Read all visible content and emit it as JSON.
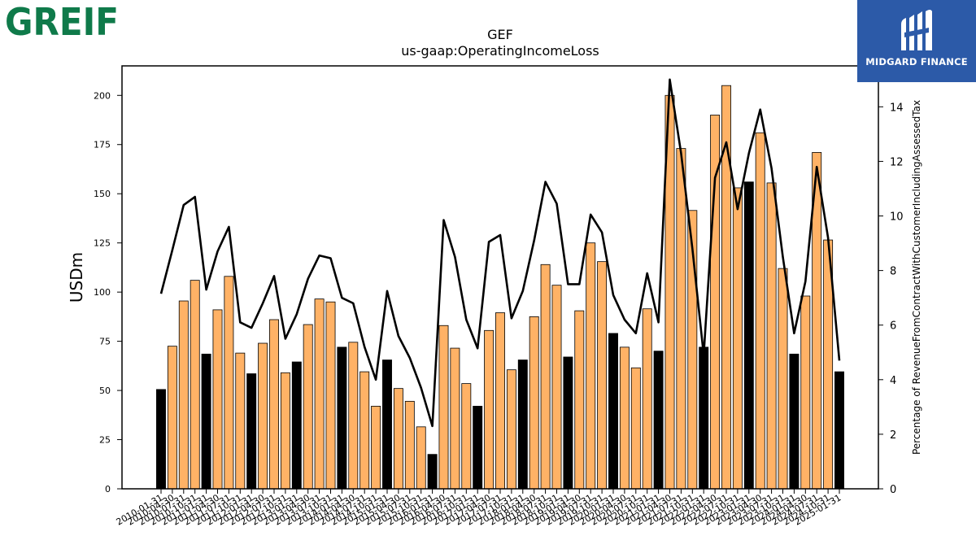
{
  "logos": {
    "left_text": "GREIF",
    "right_text": "MIDGARD FINANCE"
  },
  "chart_data": {
    "type": "bar",
    "title": "GEF",
    "subtitle": "us-gaap:OperatingIncomeLoss",
    "ylabel": "USDm",
    "y2label": "Percentage of RevenueFromContractWithCustomerIncludingAssessedTax",
    "ylim": [
      0,
      215
    ],
    "y2lim": [
      0,
      15.5
    ],
    "yticks": [
      0,
      25,
      50,
      75,
      100,
      125,
      150,
      175,
      200
    ],
    "y2ticks": [
      0,
      2,
      4,
      6,
      8,
      10,
      12,
      14
    ],
    "grid": false,
    "colors": {
      "annual": "#000000",
      "quarter": "#ffb266",
      "line": "#000000"
    },
    "categories": [
      "2010-01-31",
      "2010-04-30",
      "2010-07-31",
      "2010-10-31",
      "2011-01-31",
      "2011-04-30",
      "2011-07-31",
      "2011-10-31",
      "2012-01-31",
      "2012-04-30",
      "2012-07-31",
      "2012-10-31",
      "2013-01-31",
      "2013-04-30",
      "2013-07-31",
      "2013-10-31",
      "2014-01-31",
      "2014-04-30",
      "2014-07-31",
      "2014-10-31",
      "2015-01-31",
      "2015-04-30",
      "2015-07-31",
      "2015-10-31",
      "2016-01-31",
      "2016-04-30",
      "2016-07-31",
      "2016-10-31",
      "2017-01-31",
      "2017-04-30",
      "2017-07-31",
      "2017-10-31",
      "2018-01-31",
      "2018-04-30",
      "2018-07-31",
      "2018-10-31",
      "2019-01-31",
      "2019-04-30",
      "2019-07-31",
      "2019-10-31",
      "2020-01-31",
      "2020-04-30",
      "2020-07-31",
      "2020-10-31",
      "2021-01-31",
      "2021-04-30",
      "2021-07-31",
      "2021-10-31",
      "2022-01-31",
      "2022-04-30",
      "2022-07-31",
      "2022-10-31",
      "2023-01-31",
      "2023-04-30",
      "2023-07-31",
      "2023-10-31",
      "2024-01-31",
      "2024-04-30",
      "2024-07-31",
      "2024-10-31",
      "2025-01-31"
    ],
    "values": [
      50.5,
      72.5,
      95.5,
      106,
      68.5,
      91,
      108,
      69,
      58.5,
      74,
      86,
      59,
      64.5,
      83.5,
      96.5,
      95,
      72,
      74.5,
      59.5,
      42,
      65.5,
      51,
      44.5,
      31.5,
      17.5,
      83,
      71.5,
      53.5,
      42,
      80.5,
      89.5,
      60.5,
      65.5,
      87.5,
      114,
      103.5,
      67,
      90.5,
      125,
      115.5,
      79,
      72,
      61.5,
      91.5,
      70,
      200,
      173,
      141.5,
      72,
      190,
      205,
      153,
      156,
      181,
      155.5,
      112,
      68.5,
      98,
      171,
      126.5,
      59.5
    ],
    "annual_flags": [
      1,
      0,
      0,
      0,
      1,
      0,
      0,
      0,
      1,
      0,
      0,
      0,
      1,
      0,
      0,
      0,
      1,
      0,
      0,
      0,
      1,
      0,
      0,
      0,
      1,
      0,
      0,
      0,
      1,
      0,
      0,
      0,
      1,
      0,
      0,
      0,
      1,
      0,
      0,
      0,
      1,
      0,
      0,
      0,
      1,
      0,
      0,
      0,
      1,
      0,
      0,
      0,
      1,
      0,
      0,
      0,
      1,
      0,
      0,
      0,
      1
    ],
    "pct_line": [
      7.15,
      8.75,
      10.4,
      10.7,
      7.3,
      8.7,
      9.6,
      6.1,
      5.9,
      6.8,
      7.8,
      5.5,
      6.4,
      7.7,
      8.55,
      8.45,
      7.0,
      6.8,
      5.2,
      4.0,
      7.25,
      5.6,
      4.8,
      3.7,
      2.3,
      9.85,
      8.5,
      6.2,
      5.15,
      9.05,
      9.3,
      6.25,
      7.25,
      9.1,
      11.25,
      10.45,
      7.5,
      7.5,
      10.05,
      9.4,
      7.1,
      6.2,
      5.7,
      7.9,
      6.1,
      15.0,
      12.3,
      8.8,
      4.9,
      11.4,
      12.7,
      10.25,
      12.3,
      13.9,
      11.75,
      8.5,
      5.7,
      7.6,
      11.8,
      9.2,
      4.7
    ]
  }
}
